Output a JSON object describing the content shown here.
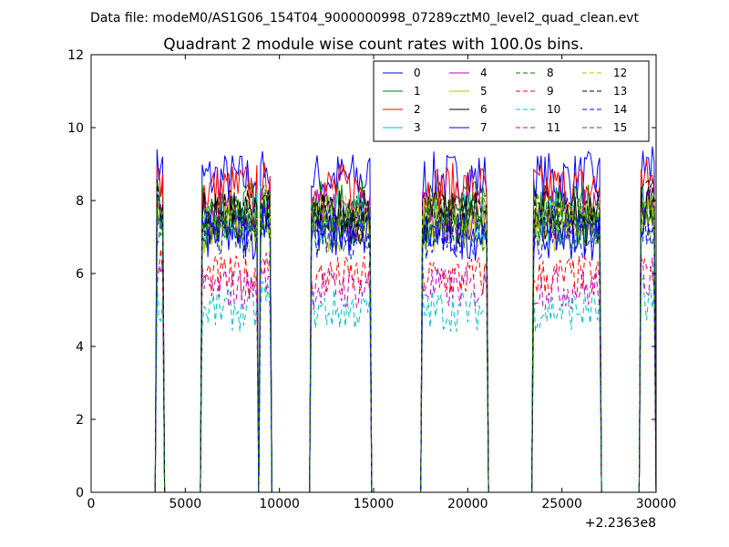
{
  "figure": {
    "suptitle": "Data file: modeM0/AS1G06_154T04_9000000998_07289cztM0_level2_quad_clean.evt"
  },
  "chart_data": {
    "type": "line",
    "title": "Quadrant 2 module wise count rates with 100.0s bins.",
    "xlabel": "",
    "ylabel": "",
    "x_offset_label": "+2.2363e8",
    "xlim": [
      0,
      30000
    ],
    "ylim": [
      0,
      12
    ],
    "xticks": [
      {
        "value": 0,
        "label": "0"
      },
      {
        "value": 5000,
        "label": "5000"
      },
      {
        "value": 10000,
        "label": "10000"
      },
      {
        "value": 15000,
        "label": "15000"
      },
      {
        "value": 20000,
        "label": "20000"
      },
      {
        "value": 25000,
        "label": "25000"
      },
      {
        "value": 30000,
        "label": "30000"
      }
    ],
    "yticks": [
      {
        "value": 0,
        "label": "0"
      },
      {
        "value": 2,
        "label": "2"
      },
      {
        "value": 4,
        "label": "4"
      },
      {
        "value": 6,
        "label": "6"
      },
      {
        "value": 8,
        "label": "8"
      },
      {
        "value": 10,
        "label": "10"
      },
      {
        "value": 12,
        "label": "12"
      }
    ],
    "grid": false,
    "legend": {
      "placement": "top-right",
      "columns": 4
    },
    "x_bin_seconds": 100,
    "segments": [
      {
        "start": 3500,
        "end": 3800
      },
      {
        "start": 5900,
        "end": 8800
      },
      {
        "start": 9000,
        "end": 9500
      },
      {
        "start": 11700,
        "end": 14800
      },
      {
        "start": 17600,
        "end": 21000
      },
      {
        "start": 23500,
        "end": 27000
      },
      {
        "start": 29200,
        "end": 29900
      }
    ],
    "series": [
      {
        "name": "0",
        "color": "#0000ff",
        "dash": "solid",
        "level": 8.6
      },
      {
        "name": "1",
        "color": "#008000",
        "dash": "solid",
        "level": 7.8
      },
      {
        "name": "2",
        "color": "#ff0000",
        "dash": "solid",
        "level": 8.3
      },
      {
        "name": "3",
        "color": "#00bfbf",
        "dash": "solid",
        "level": 7.5
      },
      {
        "name": "4",
        "color": "#bf00bf",
        "dash": "solid",
        "level": 7.6
      },
      {
        "name": "5",
        "color": "#bfbf00",
        "dash": "solid",
        "level": 7.3
      },
      {
        "name": "6",
        "color": "#000000",
        "dash": "solid",
        "level": 7.5
      },
      {
        "name": "7",
        "color": "#0000ff",
        "dash": "solid",
        "level": 7.1
      },
      {
        "name": "8",
        "color": "#008000",
        "dash": "dashed",
        "level": 7.2
      },
      {
        "name": "9",
        "color": "#ff0000",
        "dash": "dashed",
        "level": 5.9
      },
      {
        "name": "10",
        "color": "#00bfbf",
        "dash": "dashed",
        "level": 5.0
      },
      {
        "name": "11",
        "color": "#bf00bf",
        "dash": "dashed",
        "level": 5.6
      },
      {
        "name": "12",
        "color": "#bfbf00",
        "dash": "dashed",
        "level": 7.6
      },
      {
        "name": "13",
        "color": "#000000",
        "dash": "dashed",
        "level": 7.7
      },
      {
        "name": "14",
        "color": "#0000ff",
        "dash": "dashed",
        "level": 7.0
      },
      {
        "name": "15",
        "color": "#008000",
        "dash": "dashed",
        "level": 7.6
      }
    ]
  }
}
